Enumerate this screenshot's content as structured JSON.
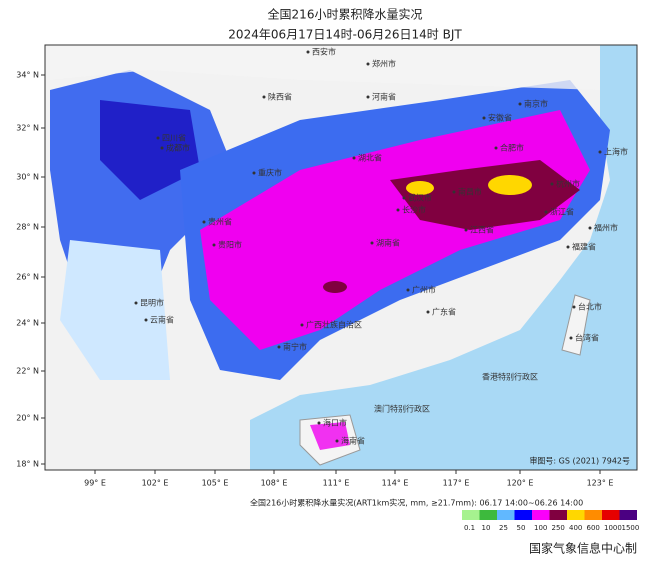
{
  "header": {
    "title": "全国216小时累积降水量实况",
    "subtitle": "2024年06月17日14时-06月26日14时 BJT"
  },
  "map": {
    "lat_ticks": [
      "34° N",
      "32° N",
      "30° N",
      "28° N",
      "26° N",
      "24° N",
      "22° N",
      "20° N",
      "18° N"
    ],
    "lon_ticks": [
      "99° E",
      "102° E",
      "105° E",
      "108° E",
      "111° E",
      "114° E",
      "117° E",
      "120° E",
      "123° E"
    ],
    "places": [
      "西安市",
      "郑州市",
      "河南省",
      "陕西省",
      "四川省",
      "成都市",
      "重庆市",
      "湖北省",
      "武汉市",
      "安徽省",
      "合肥市",
      "南京市",
      "上海市",
      "杭州市",
      "浙江省",
      "南昌市",
      "江西省",
      "长沙市",
      "湖南省",
      "贵阳市",
      "贵州省",
      "福州市",
      "福建省",
      "广东省",
      "广州市",
      "广西壮族自治区",
      "南宁市",
      "昆明市",
      "云南省",
      "海口市",
      "海南省",
      "台北市",
      "台湾省"
    ],
    "regions": [
      "香港特别行政区",
      "澳门特别行政区"
    ],
    "review_number": "审图号: GS (2021) 7942号"
  },
  "legend": {
    "title": "全国216小时累积降水量实况(ART1km实况, mm, ≥21.7mm): 06.17 14:00~06.26 14:00",
    "thresholds": [
      "0.1",
      "10",
      "25",
      "50",
      "100",
      "250",
      "400",
      "600",
      "1000",
      "1500"
    ],
    "colors": [
      "#a6f28f",
      "#3dba3d",
      "#61b8ff",
      "#0000fe",
      "#fa00fa",
      "#800040",
      "#ffd700",
      "#ff8c00",
      "#e60000",
      "#4b0082"
    ]
  },
  "footer": {
    "credit": "国家气象信息中心制"
  }
}
